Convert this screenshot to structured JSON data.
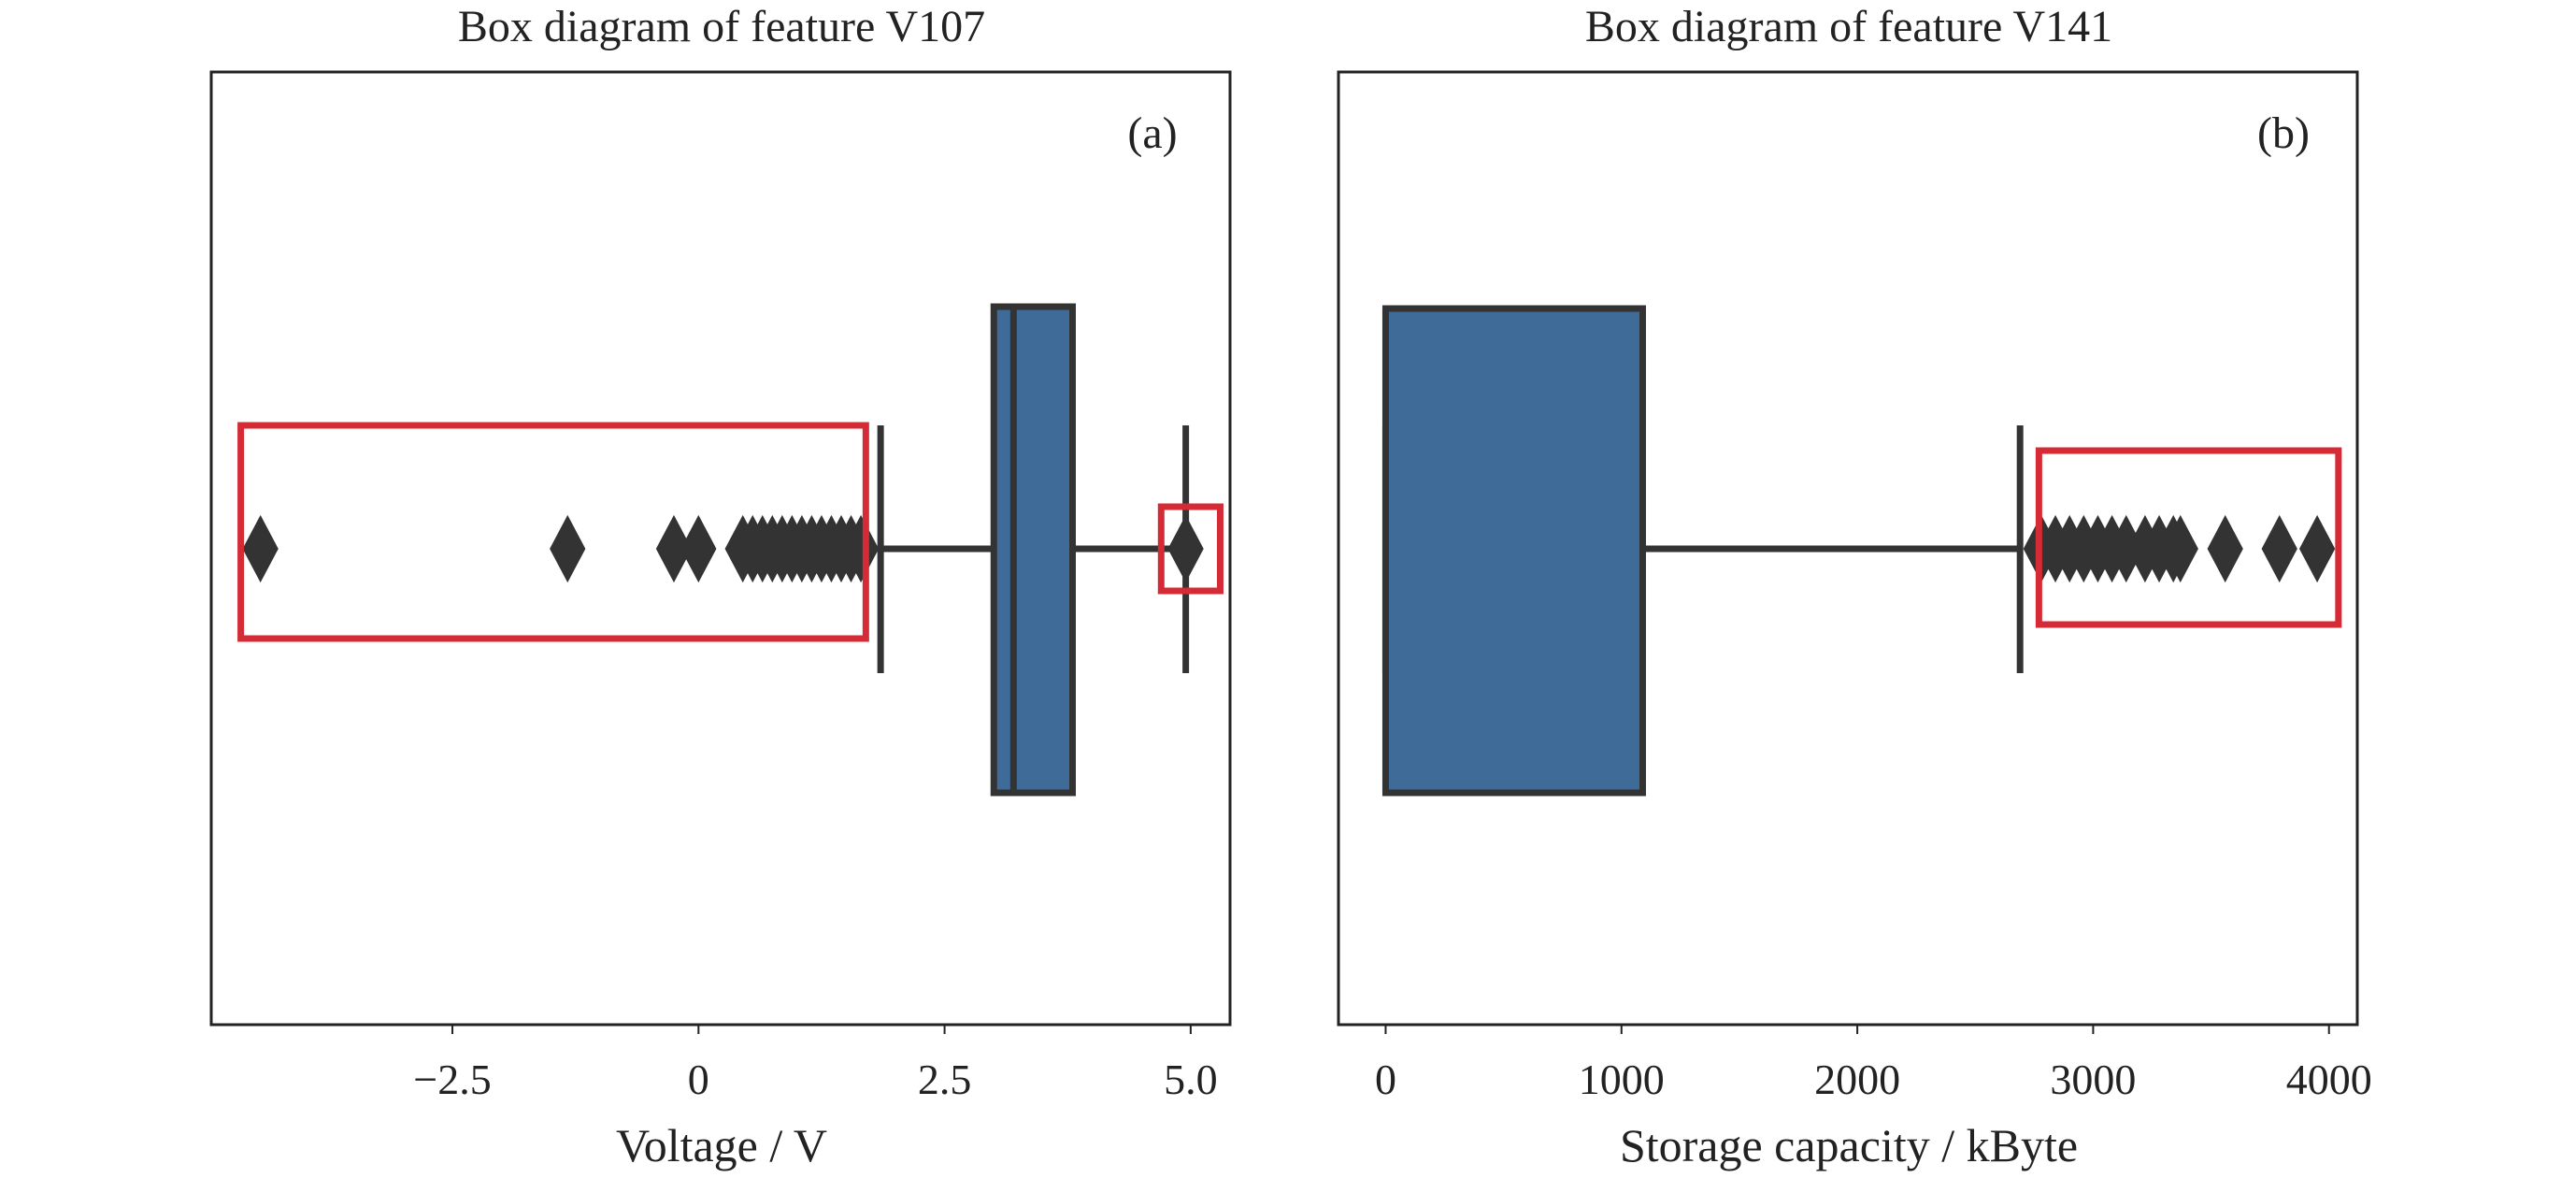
{
  "chart_data": [
    {
      "type": "box",
      "title": "Box diagram of feature V107",
      "panel_label": "(a)",
      "xlabel": "Voltage / V",
      "ylabel": "",
      "xlim": [
        -4.95,
        5.4
      ],
      "xticks": [
        -2.5,
        0,
        2.5,
        5.0
      ],
      "xtick_labels": [
        "−2.5",
        "0",
        "2.5",
        "5.0"
      ],
      "grid": false,
      "legend": "none",
      "box": {
        "q1": 3.0,
        "median": 3.2,
        "q3": 3.8,
        "whisker_low": 1.85,
        "whisker_high": 4.95
      },
      "outliers": [
        -4.45,
        -1.33,
        -0.25,
        0.0,
        0.45,
        0.55,
        0.65,
        0.75,
        0.85,
        0.95,
        1.05,
        1.15,
        1.25,
        1.35,
        1.45,
        1.55,
        1.65,
        4.95
      ],
      "highlight_ranges": [
        [
          -4.65,
          1.7
        ],
        [
          4.7,
          5.3
        ]
      ],
      "colors": {
        "box": "#3f6b99",
        "edge": "#333333",
        "highlight": "#d52b36"
      }
    },
    {
      "type": "box",
      "title": "Box diagram of feature V141",
      "panel_label": "(b)",
      "xlabel": "Storage capacity / kByte",
      "ylabel": "",
      "xlim": [
        -200,
        4120
      ],
      "xticks": [
        0,
        1000,
        2000,
        3000,
        4000
      ],
      "xtick_labels": [
        "0",
        "1000",
        "2000",
        "3000",
        "4000"
      ],
      "grid": false,
      "legend": "none",
      "box": {
        "q1": 0,
        "median": 0,
        "q3": 1090,
        "whisker_low": 0,
        "whisker_high": 2690
      },
      "outliers": [
        2780,
        2840,
        2900,
        2960,
        3020,
        3080,
        3140,
        3220,
        3280,
        3340,
        3370,
        3560,
        3790,
        3950
      ],
      "highlight_ranges": [
        [
          2770,
          4040
        ]
      ],
      "colors": {
        "box": "#3f6b99",
        "edge": "#333333",
        "highlight": "#d52b36"
      }
    }
  ]
}
